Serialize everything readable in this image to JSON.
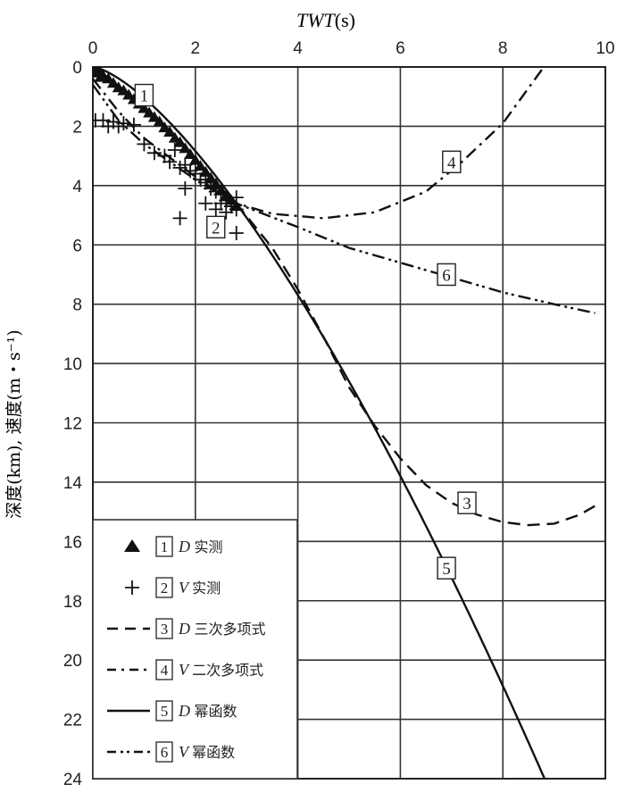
{
  "chart_data": {
    "type": "scatter",
    "xlabel_italic": "TWT",
    "xlabel_unit": "(s)",
    "ylabel": "深度(km), 速度(m・s⁻¹)",
    "xlim": [
      0,
      10
    ],
    "ylim": [
      0,
      24
    ],
    "y_inverted": true,
    "x_axis_position": "top",
    "grid": true,
    "x_ticks": [
      "0",
      "2",
      "4",
      "6",
      "8",
      "10"
    ],
    "y_ticks": [
      "0",
      "2",
      "4",
      "6",
      "8",
      "10",
      "12",
      "14",
      "16",
      "18",
      "20",
      "22",
      "24"
    ],
    "legend_position": "bottom-left",
    "series": [
      {
        "id": "1",
        "name": "D 实测",
        "kind": "triangle",
        "points": [
          [
            0.05,
            0.05
          ],
          [
            0.1,
            0.15
          ],
          [
            0.15,
            0.2
          ],
          [
            0.2,
            0.3
          ],
          [
            0.3,
            0.4
          ],
          [
            0.4,
            0.55
          ],
          [
            0.5,
            0.7
          ],
          [
            0.6,
            0.8
          ],
          [
            0.7,
            0.95
          ],
          [
            0.8,
            1.1
          ],
          [
            0.9,
            1.25
          ],
          [
            1.0,
            1.4
          ],
          [
            1.1,
            1.55
          ],
          [
            1.2,
            1.7
          ],
          [
            1.3,
            1.85
          ],
          [
            1.4,
            2.05
          ],
          [
            1.5,
            2.2
          ],
          [
            1.6,
            2.4
          ],
          [
            1.7,
            2.55
          ],
          [
            1.8,
            2.75
          ],
          [
            1.9,
            2.95
          ],
          [
            2.0,
            3.15
          ],
          [
            2.1,
            3.35
          ],
          [
            2.2,
            3.55
          ],
          [
            2.3,
            3.75
          ],
          [
            2.4,
            3.95
          ],
          [
            2.5,
            4.15
          ],
          [
            2.6,
            4.35
          ],
          [
            2.7,
            4.5
          ],
          [
            2.8,
            4.7
          ],
          [
            0.05,
            0.2
          ],
          [
            0.15,
            0.35
          ]
        ]
      },
      {
        "id": "2",
        "name": "V 实测",
        "kind": "plus",
        "points": [
          [
            0.05,
            1.8
          ],
          [
            0.2,
            1.8
          ],
          [
            0.3,
            2.0
          ],
          [
            0.4,
            1.85
          ],
          [
            0.5,
            2.0
          ],
          [
            0.6,
            1.9
          ],
          [
            0.8,
            1.95
          ],
          [
            1.0,
            2.6
          ],
          [
            1.2,
            2.9
          ],
          [
            1.4,
            3.0
          ],
          [
            1.5,
            3.2
          ],
          [
            1.6,
            2.8
          ],
          [
            1.7,
            3.4
          ],
          [
            1.8,
            3.3
          ],
          [
            1.9,
            3.5
          ],
          [
            2.0,
            3.6
          ],
          [
            2.1,
            3.8
          ],
          [
            2.2,
            3.9
          ],
          [
            2.3,
            4.1
          ],
          [
            2.4,
            4.2
          ],
          [
            2.5,
            4.3
          ],
          [
            2.6,
            4.5
          ],
          [
            2.7,
            4.7
          ],
          [
            2.8,
            4.8
          ],
          [
            2.2,
            4.6
          ],
          [
            2.4,
            4.8
          ],
          [
            2.6,
            4.9
          ],
          [
            2.8,
            4.4
          ],
          [
            1.8,
            4.1
          ],
          [
            1.7,
            5.1
          ],
          [
            2.8,
            5.6
          ],
          [
            2.5,
            4.6
          ]
        ]
      },
      {
        "id": "3",
        "name": "D 三次多项式",
        "kind": "dash",
        "points": [
          [
            2.8,
            4.6
          ],
          [
            3.5,
            6.1
          ],
          [
            4,
            7.5
          ],
          [
            4.5,
            9.1
          ],
          [
            5,
            10.8
          ],
          [
            5.5,
            12.1
          ],
          [
            6,
            13.2
          ],
          [
            6.5,
            14.1
          ],
          [
            7,
            14.7
          ],
          [
            7.5,
            15.1
          ],
          [
            8,
            15.35
          ],
          [
            8.5,
            15.45
          ],
          [
            9,
            15.4
          ],
          [
            9.5,
            15.1
          ],
          [
            9.8,
            14.8
          ]
        ]
      },
      {
        "id": "4",
        "name": "V 二次多项式",
        "kind": "dashdot",
        "points": [
          [
            0,
            0.4
          ],
          [
            0.5,
            1.5
          ],
          [
            1,
            2.4
          ],
          [
            2,
            3.7
          ],
          [
            2.8,
            4.6
          ],
          [
            3.5,
            4.95
          ],
          [
            4.5,
            5.1
          ],
          [
            5.5,
            4.9
          ],
          [
            6.5,
            4.2
          ],
          [
            7.2,
            3.2
          ],
          [
            8,
            1.9
          ],
          [
            8.8,
            0
          ]
        ]
      },
      {
        "id": "5",
        "name": "D 幂函数",
        "kind": "solid",
        "power": {
          "a": 1.045,
          "b": 1.44
        },
        "points": [
          [
            0,
            0
          ],
          [
            1,
            1.05
          ],
          [
            2,
            2.8
          ],
          [
            2.8,
            4.6
          ],
          [
            3.5,
            6.2
          ],
          [
            4,
            7.5
          ],
          [
            5,
            10.4
          ],
          [
            6,
            13.8
          ],
          [
            7,
            17.2
          ],
          [
            8,
            20.8
          ],
          [
            8.8,
            24
          ]
        ]
      },
      {
        "id": "6",
        "name": "V 幂函数",
        "kind": "dashdotdot",
        "points": [
          [
            0,
            0.6
          ],
          [
            0.5,
            1.8
          ],
          [
            1,
            2.6
          ],
          [
            2,
            3.8
          ],
          [
            2.8,
            4.6
          ],
          [
            4,
            5.4
          ],
          [
            5,
            6.1
          ],
          [
            6,
            6.6
          ],
          [
            7,
            7.1
          ],
          [
            8,
            7.6
          ],
          [
            9,
            8.0
          ],
          [
            9.8,
            8.3
          ]
        ]
      }
    ],
    "annotations": [
      {
        "text": "1",
        "x": 1.0,
        "y": 0.95
      },
      {
        "text": "2",
        "x": 2.4,
        "y": 5.4
      },
      {
        "text": "3",
        "x": 7.3,
        "y": 14.7
      },
      {
        "text": "4",
        "x": 7.0,
        "y": 3.2
      },
      {
        "text": "5",
        "x": 6.9,
        "y": 16.9
      },
      {
        "text": "6",
        "x": 6.9,
        "y": 7.0
      }
    ]
  }
}
